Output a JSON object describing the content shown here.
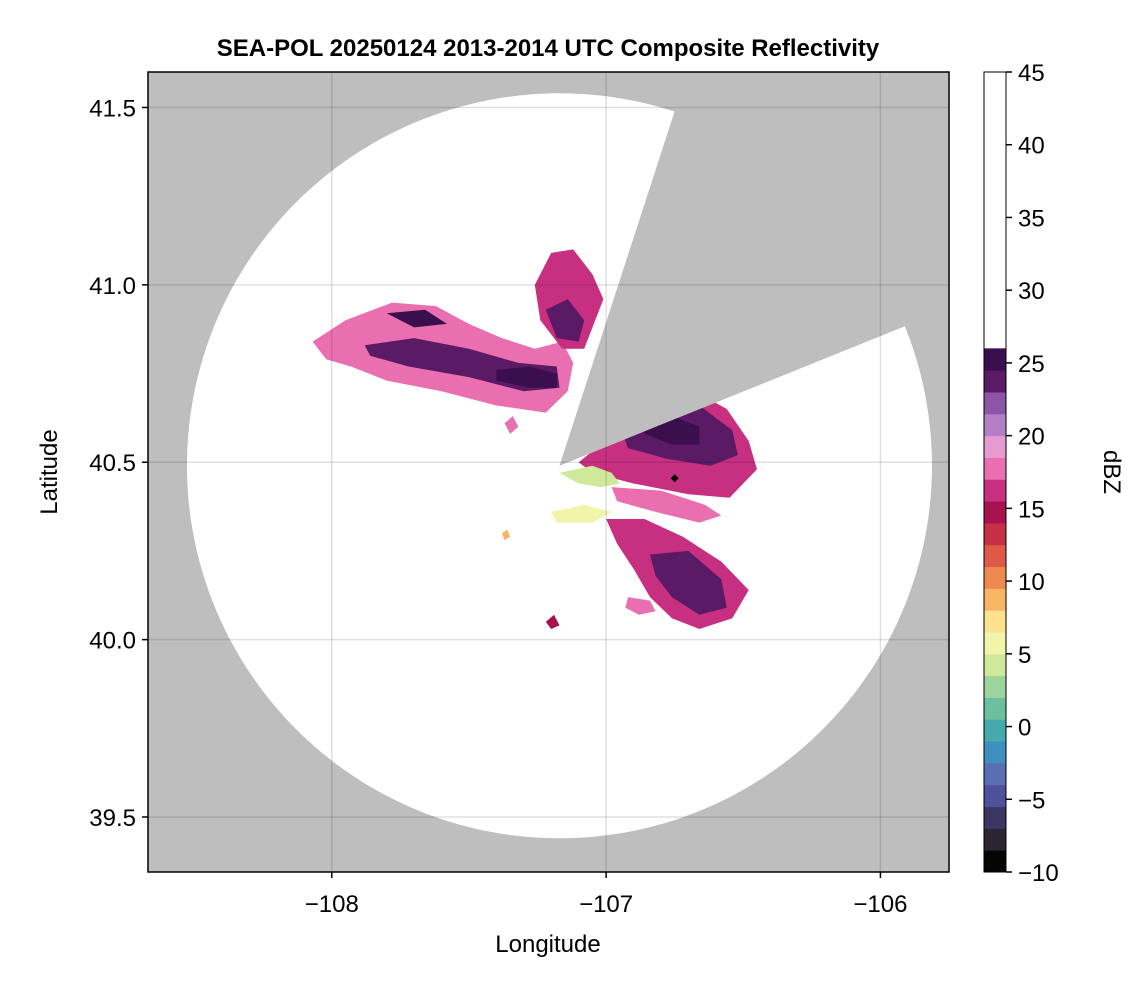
{
  "chart_data": {
    "type": "heatmap",
    "title": "SEA-POL 20250124 2013-2014 UTC Composite Reflectivity",
    "xlabel": "Longitude",
    "ylabel": "Latitude",
    "xlim": [
      -108.67,
      -105.75
    ],
    "ylim": [
      39.345,
      41.6
    ],
    "xticks": [
      -108,
      -107,
      -106
    ],
    "xtick_labels": [
      "−108",
      "−107",
      "−106"
    ],
    "yticks": [
      39.5,
      40.0,
      40.5,
      41.0,
      41.5
    ],
    "ytick_labels": [
      "39.5",
      "40.0",
      "40.5",
      "41.0",
      "41.5"
    ],
    "grid": true,
    "background_color": "#bebebe",
    "coverage_color": "#ffffff",
    "radar": {
      "center_lon": -107.17,
      "center_lat": 40.49,
      "range_lat_deg": 1.05,
      "blocked_sector_deg": [
        18,
        68
      ]
    },
    "marker": {
      "lon": -106.75,
      "lat": 40.455,
      "color": "#000000"
    },
    "colorbar": {
      "label": "dBZ",
      "min": -10,
      "max": 45,
      "ticks": [
        -10,
        -5,
        0,
        5,
        10,
        15,
        20,
        25,
        30,
        35,
        40,
        45
      ],
      "tick_labels": [
        "−10",
        "−5",
        "0",
        "5",
        "10",
        "15",
        "20",
        "25",
        "30",
        "35",
        "40",
        "45"
      ],
      "step": 1.5,
      "colors": [
        "#050505",
        "#2a2433",
        "#3b3663",
        "#4f4f9c",
        "#5a6fb3",
        "#3f8fc0",
        "#45a9ae",
        "#6cc0a0",
        "#9dd39c",
        "#cfe89a",
        "#f1f5aa",
        "#fce28e",
        "#f6b664",
        "#ee8a4f",
        "#df5a46",
        "#c72f47",
        "#a5124e",
        "#c72f80",
        "#e96fb0",
        "#e79ad0",
        "#b47fc6",
        "#8c55a8",
        "#5a1a66",
        "#3b0f4d"
      ]
    },
    "echo_regions": [
      {
        "name": "northwest band",
        "dbz": 17,
        "points": [
          [
            -108.07,
            40.84
          ],
          [
            -107.95,
            40.9
          ],
          [
            -107.78,
            40.95
          ],
          [
            -107.62,
            40.94
          ],
          [
            -107.5,
            40.89
          ],
          [
            -107.38,
            40.85
          ],
          [
            -107.26,
            40.82
          ],
          [
            -107.16,
            40.84
          ],
          [
            -107.12,
            40.78
          ],
          [
            -107.14,
            40.7
          ],
          [
            -107.22,
            40.64
          ],
          [
            -107.4,
            40.66
          ],
          [
            -107.6,
            40.7
          ],
          [
            -107.8,
            40.73
          ],
          [
            -107.93,
            40.77
          ],
          [
            -108.02,
            40.79
          ]
        ]
      },
      {
        "name": "northwest band",
        "dbz": 24,
        "points": [
          [
            -107.88,
            40.83
          ],
          [
            -107.7,
            40.85
          ],
          [
            -107.5,
            40.82
          ],
          [
            -107.32,
            40.78
          ],
          [
            -107.18,
            40.77
          ],
          [
            -107.17,
            40.71
          ],
          [
            -107.3,
            40.7
          ],
          [
            -107.5,
            40.74
          ],
          [
            -107.72,
            40.77
          ],
          [
            -107.86,
            40.8
          ]
        ]
      },
      {
        "name": "northwest band",
        "dbz": 29,
        "points": [
          [
            -107.4,
            40.76
          ],
          [
            -107.28,
            40.77
          ],
          [
            -107.18,
            40.75
          ],
          [
            -107.18,
            40.71
          ],
          [
            -107.28,
            40.71
          ],
          [
            -107.4,
            40.73
          ]
        ]
      },
      {
        "name": "northwest band",
        "dbz": 25,
        "points": [
          [
            -107.8,
            40.92
          ],
          [
            -107.66,
            40.93
          ],
          [
            -107.58,
            40.89
          ],
          [
            -107.7,
            40.88
          ]
        ]
      },
      {
        "name": "northern cell",
        "dbz": 16,
        "points": [
          [
            -107.26,
            41.0
          ],
          [
            -107.2,
            41.09
          ],
          [
            -107.12,
            41.1
          ],
          [
            -107.05,
            41.03
          ],
          [
            -107.01,
            40.96
          ],
          [
            -107.08,
            40.82
          ],
          [
            -107.16,
            40.82
          ],
          [
            -107.24,
            40.9
          ]
        ]
      },
      {
        "name": "northern cell",
        "dbz": 24,
        "points": [
          [
            -107.22,
            40.93
          ],
          [
            -107.14,
            40.96
          ],
          [
            -107.08,
            40.9
          ],
          [
            -107.1,
            40.84
          ],
          [
            -107.18,
            40.85
          ]
        ]
      },
      {
        "name": "east cell",
        "dbz": 16,
        "points": [
          [
            -107.02,
            40.55
          ],
          [
            -106.85,
            40.64
          ],
          [
            -106.7,
            40.71
          ],
          [
            -106.56,
            40.65
          ],
          [
            -106.48,
            40.56
          ],
          [
            -106.45,
            40.48
          ],
          [
            -106.55,
            40.4
          ],
          [
            -106.7,
            40.41
          ],
          [
            -106.9,
            40.44
          ],
          [
            -107.05,
            40.47
          ],
          [
            -107.1,
            40.5
          ]
        ]
      },
      {
        "name": "east cell",
        "dbz": 24,
        "points": [
          [
            -106.94,
            40.58
          ],
          [
            -106.82,
            40.65
          ],
          [
            -106.66,
            40.66
          ],
          [
            -106.54,
            40.59
          ],
          [
            -106.52,
            40.52
          ],
          [
            -106.62,
            40.49
          ],
          [
            -106.78,
            40.51
          ],
          [
            -106.92,
            40.54
          ]
        ]
      },
      {
        "name": "east cell",
        "dbz": 31,
        "points": [
          [
            -106.86,
            40.61
          ],
          [
            -106.76,
            40.63
          ],
          [
            -106.66,
            40.6
          ],
          [
            -106.66,
            40.55
          ],
          [
            -106.76,
            40.55
          ],
          [
            -106.86,
            40.58
          ]
        ]
      },
      {
        "name": "inner echo",
        "dbz": 4,
        "points": [
          [
            -107.17,
            40.47
          ],
          [
            -107.05,
            40.49
          ],
          [
            -106.98,
            40.47
          ],
          [
            -106.95,
            40.44
          ],
          [
            -107.02,
            40.43
          ],
          [
            -107.1,
            40.44
          ]
        ]
      },
      {
        "name": "inner echo",
        "dbz": 5,
        "points": [
          [
            -107.2,
            40.36
          ],
          [
            -107.08,
            40.38
          ],
          [
            -106.98,
            40.36
          ],
          [
            -107.05,
            40.33
          ],
          [
            -107.18,
            40.33
          ]
        ]
      },
      {
        "name": "southeast band",
        "dbz": 16,
        "points": [
          [
            -107.0,
            40.34
          ],
          [
            -106.86,
            40.34
          ],
          [
            -106.72,
            40.29
          ],
          [
            -106.58,
            40.22
          ],
          [
            -106.48,
            40.14
          ],
          [
            -106.54,
            40.06
          ],
          [
            -106.66,
            40.03
          ],
          [
            -106.76,
            40.06
          ],
          [
            -106.84,
            40.12
          ],
          [
            -106.9,
            40.2
          ],
          [
            -106.96,
            40.27
          ]
        ]
      },
      {
        "name": "southeast band",
        "dbz": 24,
        "points": [
          [
            -106.84,
            40.24
          ],
          [
            -106.7,
            40.25
          ],
          [
            -106.58,
            40.17
          ],
          [
            -106.56,
            40.09
          ],
          [
            -106.66,
            40.07
          ],
          [
            -106.76,
            40.12
          ],
          [
            -106.82,
            40.18
          ]
        ]
      },
      {
        "name": "southeast band",
        "dbz": 18,
        "points": [
          [
            -106.98,
            40.43
          ],
          [
            -106.8,
            40.42
          ],
          [
            -106.64,
            40.38
          ],
          [
            -106.58,
            40.35
          ],
          [
            -106.66,
            40.33
          ],
          [
            -106.82,
            40.36
          ],
          [
            -106.96,
            40.39
          ]
        ]
      },
      {
        "name": "small echo",
        "dbz": 17,
        "points": [
          [
            -106.92,
            40.12
          ],
          [
            -106.84,
            40.11
          ],
          [
            -106.82,
            40.08
          ],
          [
            -106.88,
            40.07
          ],
          [
            -106.93,
            40.09
          ]
        ]
      },
      {
        "name": "small echo",
        "dbz": 18,
        "points": [
          [
            -107.37,
            40.61
          ],
          [
            -107.34,
            40.63
          ],
          [
            -107.32,
            40.6
          ],
          [
            -107.35,
            40.58
          ]
        ]
      },
      {
        "name": "small echo",
        "dbz": 8,
        "points": [
          [
            -107.38,
            40.3
          ],
          [
            -107.36,
            40.31
          ],
          [
            -107.35,
            40.29
          ],
          [
            -107.37,
            40.28
          ]
        ]
      },
      {
        "name": "small echo",
        "dbz": 14,
        "points": [
          [
            -107.22,
            40.05
          ],
          [
            -107.19,
            40.07
          ],
          [
            -107.17,
            40.04
          ],
          [
            -107.2,
            40.03
          ]
        ]
      }
    ]
  }
}
